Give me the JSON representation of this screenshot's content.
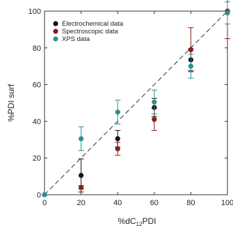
{
  "chart_data": {
    "type": "scatter",
    "xlabel_main": "%dC",
    "xlabel_sub": "12",
    "xlabel_tail": "PDI",
    "ylabel": "%PDI surf",
    "xlim": [
      0,
      100
    ],
    "ylim": [
      0,
      100
    ],
    "xticks": [
      0,
      20,
      40,
      60,
      80,
      100
    ],
    "yticks": [
      0,
      20,
      40,
      60,
      80,
      100
    ],
    "xtick_labels": [
      "0",
      "20",
      "40",
      "60",
      "80",
      "100"
    ],
    "ytick_labels": [
      "0",
      "20",
      "40",
      "60",
      "80",
      "100"
    ],
    "grid": false,
    "legend_position": "top-left",
    "reference_line": {
      "style": "dashed",
      "x": [
        0,
        100
      ],
      "y": [
        0,
        100
      ],
      "color": "#333333"
    },
    "series": [
      {
        "name": "Electrochemical data",
        "color": "#111111",
        "points": [
          {
            "x": 0,
            "y": 0,
            "err": 0
          },
          {
            "x": 20,
            "y": 10.5,
            "err": 9
          },
          {
            "x": 40,
            "y": 30.5,
            "err": 4.5
          },
          {
            "x": 60,
            "y": 47.5,
            "err": 5
          },
          {
            "x": 80,
            "y": 73.5,
            "err": 6
          },
          {
            "x": 100,
            "y": 100,
            "err": 0
          }
        ]
      },
      {
        "name": "Spectroscopic data",
        "color": "#8b1a1a",
        "points": [
          {
            "x": 20,
            "y": 4,
            "err": 1
          },
          {
            "x": 40,
            "y": 25,
            "err": 3.5
          },
          {
            "x": 60,
            "y": 41,
            "err": 6
          },
          {
            "x": 80,
            "y": 79,
            "err": 12
          },
          {
            "x": 100,
            "y": 100,
            "err": 15
          }
        ]
      },
      {
        "name": "XPS data",
        "color": "#2a8f8f",
        "points": [
          {
            "x": 0,
            "y": 0,
            "err": 0
          },
          {
            "x": 20,
            "y": 30.5,
            "err": 6.5
          },
          {
            "x": 40,
            "y": 45,
            "err": 6.5
          },
          {
            "x": 60,
            "y": 50.5,
            "err": 6.5
          },
          {
            "x": 80,
            "y": 70,
            "err": 6.5
          },
          {
            "x": 100,
            "y": 99,
            "err": 6
          }
        ]
      }
    ]
  }
}
